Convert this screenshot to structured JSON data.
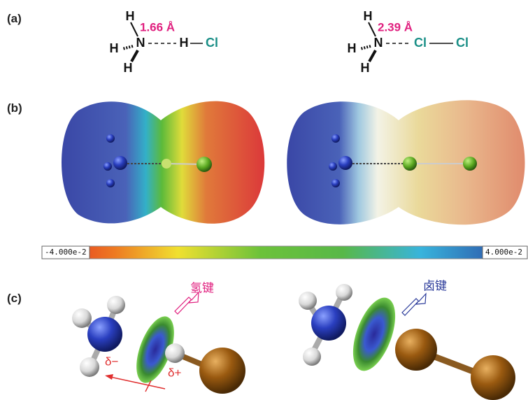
{
  "panels": [
    {
      "label": "(a)",
      "structures": [
        {
          "atoms": [
            "H",
            "H",
            "N",
            "H",
            "H",
            "Cl"
          ],
          "distance": "1.66 Å"
        },
        {
          "atoms": [
            "H",
            "H",
            "N",
            "H",
            "Cl",
            "Cl"
          ],
          "distance": "2.39 Å"
        }
      ]
    },
    {
      "label": "(b)",
      "colorbar": {
        "min_label": "-4.000e-2",
        "max_label": "4.000e-2"
      }
    },
    {
      "label": "(c)",
      "bond_labels": [
        "氢键",
        "卤键"
      ],
      "charges": [
        "δ−",
        "δ+"
      ]
    }
  ]
}
